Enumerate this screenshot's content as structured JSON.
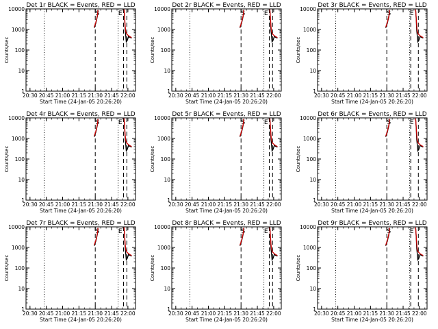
{
  "chart_data": {
    "type": "line",
    "grid": "3x3",
    "x_tick_labels": [
      "20:30",
      "20:45",
      "21:00",
      "21:15",
      "21:30",
      "21:45",
      "22:00"
    ],
    "xlabel": "Start Time (24-Jan-05 20:26:20)",
    "ylabel": "Counts/sec",
    "ylog": true,
    "ylim": [
      1,
      10000
    ],
    "y_tick_labels": [
      "1",
      "10",
      "100",
      "1000",
      "10000"
    ],
    "xlim": [
      "20:26:20",
      "22:07:00"
    ],
    "legend": "in title",
    "colors": {
      "events": "#000000",
      "lld": "#cc0000"
    },
    "vlines": [
      {
        "style": "dotted",
        "time": "20:43"
      },
      {
        "style": "dashed",
        "time": "21:30"
      },
      {
        "style": "dotted",
        "time": "21:51"
      },
      {
        "style": "dashed",
        "time": "21:52",
        "only_in": [
          3,
          6,
          9
        ]
      },
      {
        "style": "dashed",
        "time": "21:56",
        "only_in": [
          1,
          2,
          4,
          5,
          7,
          8
        ]
      },
      {
        "style": "dashed",
        "time": "21:59"
      }
    ],
    "markers": [
      {
        "text": "S",
        "time": "21:32"
      },
      {
        "text": "E",
        "time": "21:53"
      }
    ],
    "panels": [
      {
        "id": 1,
        "title": "Det 1r BLACK = Events, RED = LLD"
      },
      {
        "id": 2,
        "title": "Det 2r BLACK = Events, RED = LLD"
      },
      {
        "id": 3,
        "title": "Det 3r BLACK = Events, RED = LLD"
      },
      {
        "id": 4,
        "title": "Det 4r BLACK = Events, RED = LLD"
      },
      {
        "id": 5,
        "title": "Det 5r BLACK = Events, RED = LLD"
      },
      {
        "id": 6,
        "title": "Det 6r BLACK = Events, RED = LLD"
      },
      {
        "id": 7,
        "title": "Det 7r BLACK = Events, RED = LLD"
      },
      {
        "id": 8,
        "title": "Det 8r BLACK = Events, RED = LLD"
      },
      {
        "id": 9,
        "title": "Det 9r BLACK = Events, RED = LLD"
      }
    ],
    "series": [
      {
        "name": "Events",
        "segments": [
          {
            "x": [
              "21:29:00",
              "21:30:30",
              "21:32:00",
              "21:32:30"
            ],
            "y": [
              1200,
              2000,
              4500,
              8000
            ]
          },
          {
            "x": [
              "21:56:30",
              "21:57:00",
              "21:57:30",
              "21:58:00",
              "21:58:30",
              "21:59:30",
              "22:00:30",
              "22:01:30",
              "22:02:30",
              "22:03:30"
            ],
            "y": [
              9000,
              3500,
              900,
              500,
              250,
              300,
              450,
              420,
              400,
              380
            ]
          }
        ]
      },
      {
        "name": "LLD",
        "segments": [
          {
            "x": [
              "21:29:00",
              "21:30:30",
              "21:32:00",
              "21:32:30"
            ],
            "y": [
              1300,
              2200,
              5000,
              9000
            ]
          },
          {
            "x": [
              "21:56:30",
              "21:57:00",
              "21:57:30",
              "21:58:00",
              "21:59:00",
              "22:00:30",
              "22:01:30",
              "22:02:30",
              "22:03:30"
            ],
            "y": [
              9500,
              4000,
              1500,
              800,
              600,
              500,
              460,
              430,
              400
            ]
          }
        ]
      }
    ]
  }
}
